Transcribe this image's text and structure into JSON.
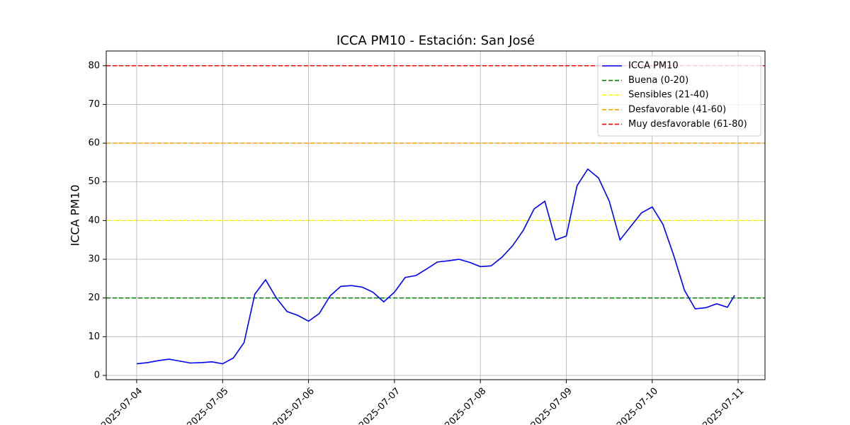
{
  "chart_data": {
    "type": "line",
    "title": "ICCA PM10 - Estación: San José",
    "y_label": "ICCA PM10",
    "x": [
      "2025-07-04 00:00",
      "2025-07-04 03:00",
      "2025-07-04 06:00",
      "2025-07-04 09:00",
      "2025-07-04 12:00",
      "2025-07-04 15:00",
      "2025-07-04 18:00",
      "2025-07-04 21:00",
      "2025-07-05 00:00",
      "2025-07-05 03:00",
      "2025-07-05 06:00",
      "2025-07-05 09:00",
      "2025-07-05 12:00",
      "2025-07-05 15:00",
      "2025-07-05 18:00",
      "2025-07-05 21:00",
      "2025-07-06 00:00",
      "2025-07-06 03:00",
      "2025-07-06 06:00",
      "2025-07-06 09:00",
      "2025-07-06 12:00",
      "2025-07-06 15:00",
      "2025-07-06 18:00",
      "2025-07-06 21:00",
      "2025-07-07 00:00",
      "2025-07-07 03:00",
      "2025-07-07 06:00",
      "2025-07-07 09:00",
      "2025-07-07 12:00",
      "2025-07-07 15:00",
      "2025-07-07 18:00",
      "2025-07-07 21:00",
      "2025-07-08 00:00",
      "2025-07-08 03:00",
      "2025-07-08 06:00",
      "2025-07-08 09:00",
      "2025-07-08 12:00",
      "2025-07-08 15:00",
      "2025-07-08 18:00",
      "2025-07-08 21:00",
      "2025-07-09 00:00",
      "2025-07-09 03:00",
      "2025-07-09 06:00",
      "2025-07-09 09:00",
      "2025-07-09 12:00",
      "2025-07-09 15:00",
      "2025-07-09 18:00",
      "2025-07-09 21:00",
      "2025-07-10 00:00",
      "2025-07-10 03:00",
      "2025-07-10 06:00",
      "2025-07-10 09:00",
      "2025-07-10 12:00",
      "2025-07-10 15:00",
      "2025-07-10 18:00",
      "2025-07-10 21:00",
      "2025-07-10 23:00"
    ],
    "series": [
      {
        "name": "ICCA PM10",
        "color": "#0000ff",
        "values": [
          3.0,
          3.3,
          3.8,
          4.2,
          3.7,
          3.2,
          3.3,
          3.5,
          3.0,
          4.5,
          8.5,
          21,
          24.7,
          20,
          16.5,
          15.5,
          14.0,
          16,
          20.5,
          23,
          23.2,
          22.8,
          21.5,
          19.0,
          21.5,
          25.3,
          25.8,
          27.5,
          29.3,
          29.6,
          30,
          29.2,
          28.1,
          28.3,
          30.5,
          33.5,
          37.5,
          43,
          45,
          35,
          36,
          49,
          53.3,
          51,
          45,
          35,
          38.5,
          42,
          43.5,
          39,
          31,
          22,
          17.2,
          17.5,
          18.5,
          17.6,
          20.7
        ]
      }
    ],
    "reference_lines": [
      {
        "name": "Buena (0-20)",
        "color": "#008000",
        "value": 20
      },
      {
        "name": "Sensibles (21-40)",
        "color": "#ffff00",
        "value": 40
      },
      {
        "name": "Desfavorable (41-60)",
        "color": "#ffa500",
        "value": 60
      },
      {
        "name": "Muy desfavorable (61-80)",
        "color": "#ff0000",
        "value": 80
      }
    ],
    "xlim": [
      "2025-07-03 15:30",
      "2025-07-11 07:30"
    ],
    "xticks": [
      "2025-07-04",
      "2025-07-05",
      "2025-07-06",
      "2025-07-07",
      "2025-07-08",
      "2025-07-09",
      "2025-07-10",
      "2025-07-11"
    ],
    "ylim": [
      -1.1,
      83.8
    ],
    "yticks": [
      0,
      10,
      20,
      30,
      40,
      50,
      60,
      70,
      80
    ],
    "grid": true,
    "legend": "upper right"
  }
}
